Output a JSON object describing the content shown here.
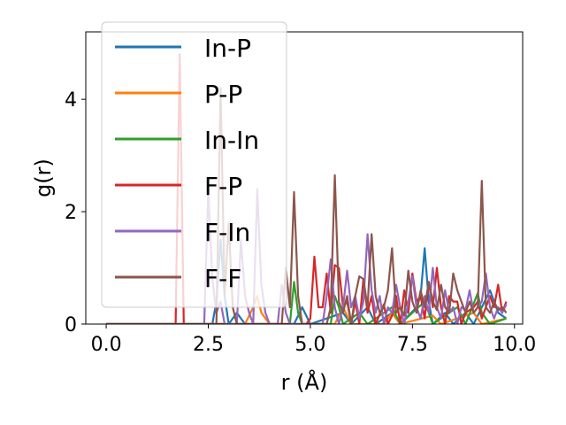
{
  "chart_data": {
    "type": "line",
    "title": "",
    "xlabel": "r (Å)",
    "ylabel": "g(r)",
    "xlim": [
      -0.5,
      10.2
    ],
    "ylim": [
      0,
      5.2
    ],
    "xticks": [
      0.0,
      2.5,
      5.0,
      7.5,
      10.0
    ],
    "xtick_labels": [
      "0.0",
      "2.5",
      "5.0",
      "7.5",
      "10.0"
    ],
    "yticks": [
      0,
      2,
      4
    ],
    "ytick_labels": [
      "0",
      "2",
      "4"
    ],
    "grid": false,
    "legend_position": "upper-left",
    "series": [
      {
        "name": "In-P",
        "color": "#1f77b4",
        "points": [
          [
            0.0,
            0
          ],
          [
            2.6,
            0
          ],
          [
            2.7,
            0.4
          ],
          [
            2.8,
            1.5
          ],
          [
            2.9,
            0.5
          ],
          [
            3.0,
            0
          ],
          [
            3.2,
            0.2
          ],
          [
            3.4,
            0
          ],
          [
            4.6,
            0
          ],
          [
            4.8,
            0.3
          ],
          [
            5.0,
            0
          ],
          [
            5.8,
            0.2
          ],
          [
            6.0,
            0
          ],
          [
            6.4,
            0.3
          ],
          [
            6.6,
            0
          ],
          [
            7.0,
            0.2
          ],
          [
            7.2,
            0
          ],
          [
            7.6,
            0.3
          ],
          [
            7.7,
            0.5
          ],
          [
            7.8,
            1.35
          ],
          [
            7.9,
            0.4
          ],
          [
            8.0,
            0
          ],
          [
            8.3,
            0.2
          ],
          [
            8.5,
            0
          ],
          [
            8.8,
            0.2
          ],
          [
            9.0,
            0
          ],
          [
            9.4,
            0.6
          ],
          [
            9.6,
            0.2
          ],
          [
            9.8,
            0.1
          ]
        ]
      },
      {
        "name": "P-P",
        "color": "#ff7f0e",
        "points": [
          [
            0.0,
            0
          ],
          [
            3.4,
            0
          ],
          [
            3.6,
            0.3
          ],
          [
            3.7,
            0.5
          ],
          [
            3.8,
            0.2
          ],
          [
            4.0,
            0
          ],
          [
            5.6,
            0
          ],
          [
            5.8,
            0.3
          ],
          [
            6.0,
            0
          ],
          [
            6.8,
            0
          ],
          [
            7.0,
            0.2
          ],
          [
            7.2,
            0
          ],
          [
            8.0,
            0.15
          ],
          [
            8.2,
            0
          ],
          [
            9.0,
            0.2
          ],
          [
            9.2,
            0
          ],
          [
            9.8,
            0.1
          ]
        ]
      },
      {
        "name": "In-In",
        "color": "#2ca02c",
        "points": [
          [
            0.0,
            0
          ],
          [
            4.5,
            0
          ],
          [
            4.6,
            0.75
          ],
          [
            4.7,
            0.2
          ],
          [
            4.8,
            0
          ],
          [
            5.5,
            0
          ],
          [
            5.6,
            0.5
          ],
          [
            5.7,
            0.3
          ],
          [
            5.8,
            0
          ],
          [
            6.2,
            0.2
          ],
          [
            6.4,
            0
          ],
          [
            7.0,
            0.3
          ],
          [
            7.2,
            0
          ],
          [
            7.8,
            0.4
          ],
          [
            8.0,
            0
          ],
          [
            8.6,
            0.3
          ],
          [
            8.8,
            0
          ],
          [
            9.1,
            0.55
          ],
          [
            9.2,
            0.2
          ],
          [
            9.4,
            0
          ],
          [
            9.8,
            0.1
          ]
        ]
      },
      {
        "name": "F-P",
        "color": "#d62728",
        "points": [
          [
            0.0,
            0
          ],
          [
            1.7,
            0
          ],
          [
            1.8,
            4.8
          ],
          [
            1.9,
            0
          ],
          [
            4.9,
            0
          ],
          [
            5.0,
            0.1
          ],
          [
            5.1,
            1.2
          ],
          [
            5.2,
            0.3
          ],
          [
            5.3,
            0.3
          ],
          [
            5.4,
            0.9
          ],
          [
            5.5,
            0.2
          ],
          [
            5.6,
            1.05
          ],
          [
            5.7,
            1.0
          ],
          [
            5.8,
            0.3
          ],
          [
            5.9,
            0.4
          ],
          [
            6.0,
            0
          ],
          [
            6.1,
            0.4
          ],
          [
            6.2,
            0
          ],
          [
            6.3,
            0.8
          ],
          [
            6.4,
            0.2
          ],
          [
            6.5,
            0.5
          ],
          [
            6.6,
            0
          ],
          [
            6.8,
            0.35
          ],
          [
            6.9,
            0
          ],
          [
            7.0,
            0.15
          ],
          [
            7.1,
            0.5
          ],
          [
            7.2,
            0
          ],
          [
            7.3,
            0.6
          ],
          [
            7.4,
            0.2
          ],
          [
            7.5,
            0.9
          ],
          [
            7.6,
            0.4
          ],
          [
            7.7,
            0.5
          ],
          [
            7.8,
            0.1
          ],
          [
            7.9,
            0.75
          ],
          [
            8.0,
            0.3
          ],
          [
            8.1,
            1.0
          ],
          [
            8.2,
            0.3
          ],
          [
            8.3,
            0
          ],
          [
            8.4,
            0.5
          ],
          [
            8.5,
            0.4
          ],
          [
            8.6,
            0.4
          ],
          [
            8.7,
            0
          ],
          [
            8.8,
            0.2
          ],
          [
            9.0,
            0.3
          ],
          [
            9.1,
            0.4
          ],
          [
            9.2,
            0.1
          ],
          [
            9.3,
            0.3
          ],
          [
            9.4,
            0.5
          ],
          [
            9.5,
            0.3
          ],
          [
            9.6,
            0.7
          ],
          [
            9.7,
            0.2
          ],
          [
            9.8,
            0.4
          ]
        ]
      },
      {
        "name": "F-In",
        "color": "#9467bd",
        "points": [
          [
            0.0,
            0
          ],
          [
            2.4,
            0
          ],
          [
            2.5,
            2.4
          ],
          [
            2.6,
            0.8
          ],
          [
            2.7,
            0.2
          ],
          [
            2.8,
            0.4
          ],
          [
            2.9,
            0
          ],
          [
            3.2,
            0
          ],
          [
            3.3,
            1.5
          ],
          [
            3.4,
            0.5
          ],
          [
            3.5,
            0.2
          ],
          [
            3.6,
            0
          ],
          [
            3.7,
            2.4
          ],
          [
            3.8,
            0.7
          ],
          [
            3.9,
            0.2
          ],
          [
            4.0,
            0
          ],
          [
            4.2,
            0
          ],
          [
            4.3,
            0.7
          ],
          [
            4.4,
            0.2
          ],
          [
            4.5,
            0
          ],
          [
            5.3,
            0
          ],
          [
            5.4,
            0.5
          ],
          [
            5.5,
            1.15
          ],
          [
            5.6,
            0.3
          ],
          [
            5.7,
            0
          ],
          [
            5.8,
            0.3
          ],
          [
            5.9,
            0.95
          ],
          [
            6.0,
            0.3
          ],
          [
            6.1,
            0.5
          ],
          [
            6.2,
            0.1
          ],
          [
            6.3,
            0.4
          ],
          [
            6.4,
            1.6
          ],
          [
            6.5,
            0.6
          ],
          [
            6.6,
            0.2
          ],
          [
            6.7,
            0.5
          ],
          [
            6.8,
            0
          ],
          [
            6.9,
            0.3
          ],
          [
            7.0,
            0.2
          ],
          [
            7.1,
            0.7
          ],
          [
            7.2,
            0.3
          ],
          [
            7.3,
            0
          ],
          [
            7.4,
            0.4
          ],
          [
            7.5,
            0.85
          ],
          [
            7.6,
            0.3
          ],
          [
            7.7,
            0.1
          ],
          [
            7.8,
            0.5
          ],
          [
            7.9,
            0.2
          ],
          [
            8.0,
            1.0
          ],
          [
            8.1,
            0.3
          ],
          [
            8.2,
            0.1
          ],
          [
            8.3,
            0.6
          ],
          [
            8.4,
            0.2
          ],
          [
            8.5,
            0.3
          ],
          [
            8.6,
            0
          ],
          [
            8.7,
            0.3
          ],
          [
            8.8,
            0.25
          ],
          [
            8.9,
            0.6
          ],
          [
            9.0,
            0.2
          ],
          [
            9.1,
            0.3
          ],
          [
            9.2,
            0.4
          ],
          [
            9.3,
            0.9
          ],
          [
            9.4,
            0.3
          ],
          [
            9.5,
            0.1
          ],
          [
            9.6,
            0.3
          ],
          [
            9.7,
            0.2
          ],
          [
            9.8,
            0.35
          ]
        ]
      },
      {
        "name": "F-F",
        "color": "#8c564b",
        "points": [
          [
            0.0,
            0
          ],
          [
            2.7,
            0
          ],
          [
            2.8,
            4.2
          ],
          [
            2.9,
            0.5
          ],
          [
            3.0,
            1.8
          ],
          [
            3.1,
            0.3
          ],
          [
            3.2,
            0
          ],
          [
            4.3,
            0
          ],
          [
            4.4,
            1.0
          ],
          [
            4.5,
            0.3
          ],
          [
            4.6,
            2.35
          ],
          [
            4.7,
            0.5
          ],
          [
            4.8,
            0
          ],
          [
            5.4,
            0
          ],
          [
            5.5,
            0.3
          ],
          [
            5.6,
            2.65
          ],
          [
            5.7,
            0.4
          ],
          [
            5.8,
            0.2
          ],
          [
            5.9,
            0.5
          ],
          [
            6.0,
            0
          ],
          [
            6.1,
            0.5
          ],
          [
            6.2,
            0.85
          ],
          [
            6.3,
            0.8
          ],
          [
            6.4,
            0.3
          ],
          [
            6.5,
            1.6
          ],
          [
            6.6,
            0.5
          ],
          [
            6.7,
            0.2
          ],
          [
            6.8,
            0.3
          ],
          [
            6.9,
            0.6
          ],
          [
            7.0,
            1.35
          ],
          [
            7.1,
            0.2
          ],
          [
            7.2,
            0.3
          ],
          [
            7.3,
            0.15
          ],
          [
            7.4,
            0.95
          ],
          [
            7.5,
            0.4
          ],
          [
            7.6,
            0.2
          ],
          [
            7.7,
            0.6
          ],
          [
            7.8,
            0.3
          ],
          [
            7.9,
            0.75
          ],
          [
            8.0,
            0.4
          ],
          [
            8.1,
            0.25
          ],
          [
            8.2,
            0.7
          ],
          [
            8.3,
            0.3
          ],
          [
            8.4,
            0.2
          ],
          [
            8.5,
            0.9
          ],
          [
            8.6,
            0.6
          ],
          [
            8.7,
            0.4
          ],
          [
            8.8,
            0.2
          ],
          [
            8.9,
            0.4
          ],
          [
            9.0,
            0.2
          ],
          [
            9.1,
            0.3
          ],
          [
            9.2,
            2.55
          ],
          [
            9.3,
            0.3
          ],
          [
            9.4,
            0.2
          ],
          [
            9.5,
            0.4
          ],
          [
            9.6,
            0.25
          ],
          [
            9.7,
            0.3
          ],
          [
            9.8,
            0.2
          ]
        ]
      }
    ]
  }
}
